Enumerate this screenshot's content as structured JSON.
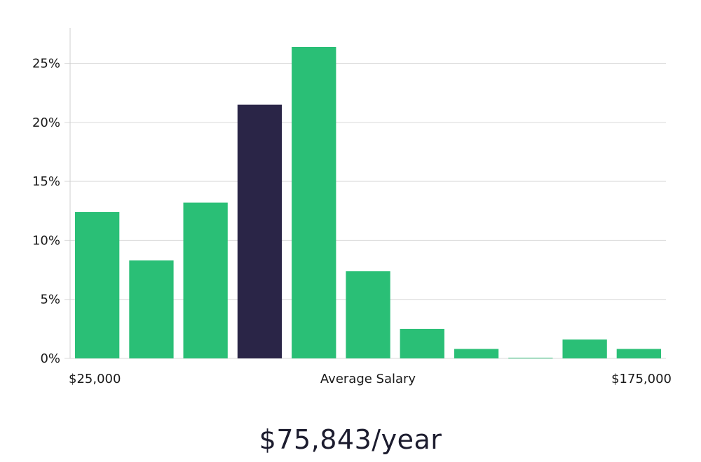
{
  "colors": {
    "bar": "#2abf76",
    "highlight": "#2a2547",
    "grid": "#d9d9d9"
  },
  "chart_data": {
    "type": "bar",
    "categories": [
      "1",
      "2",
      "3",
      "4",
      "5",
      "6",
      "7",
      "8",
      "9",
      "10",
      "11"
    ],
    "values": [
      12.4,
      8.3,
      13.2,
      21.5,
      26.4,
      7.4,
      2.5,
      0.8,
      0.05,
      1.6,
      0.8
    ],
    "highlight_index": 3,
    "ylim": [
      0,
      28
    ],
    "yticks": [
      0,
      5,
      10,
      15,
      20,
      25
    ],
    "ytick_labels": [
      "0%",
      "5%",
      "10%",
      "15%",
      "20%",
      "25%"
    ],
    "x_labels": {
      "left": "$25,000",
      "center": "Average Salary",
      "right": "$175,000"
    },
    "grid": true,
    "title": "",
    "xlabel": "",
    "ylabel": ""
  },
  "salary_text": "$75,843/year"
}
